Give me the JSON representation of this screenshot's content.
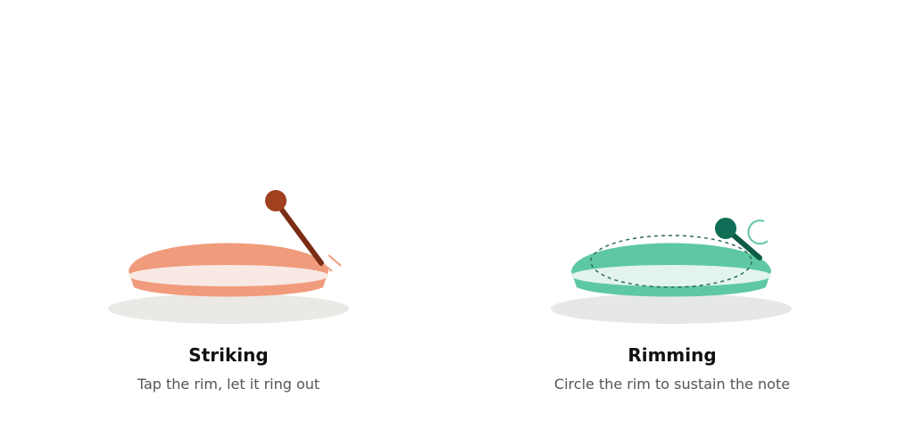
{
  "cards": [
    {
      "title": "Striking",
      "caption": "Tap the rim, let it ring out"
    },
    {
      "title": "Rimming",
      "caption": "Circle the rim to sustain the note"
    }
  ]
}
